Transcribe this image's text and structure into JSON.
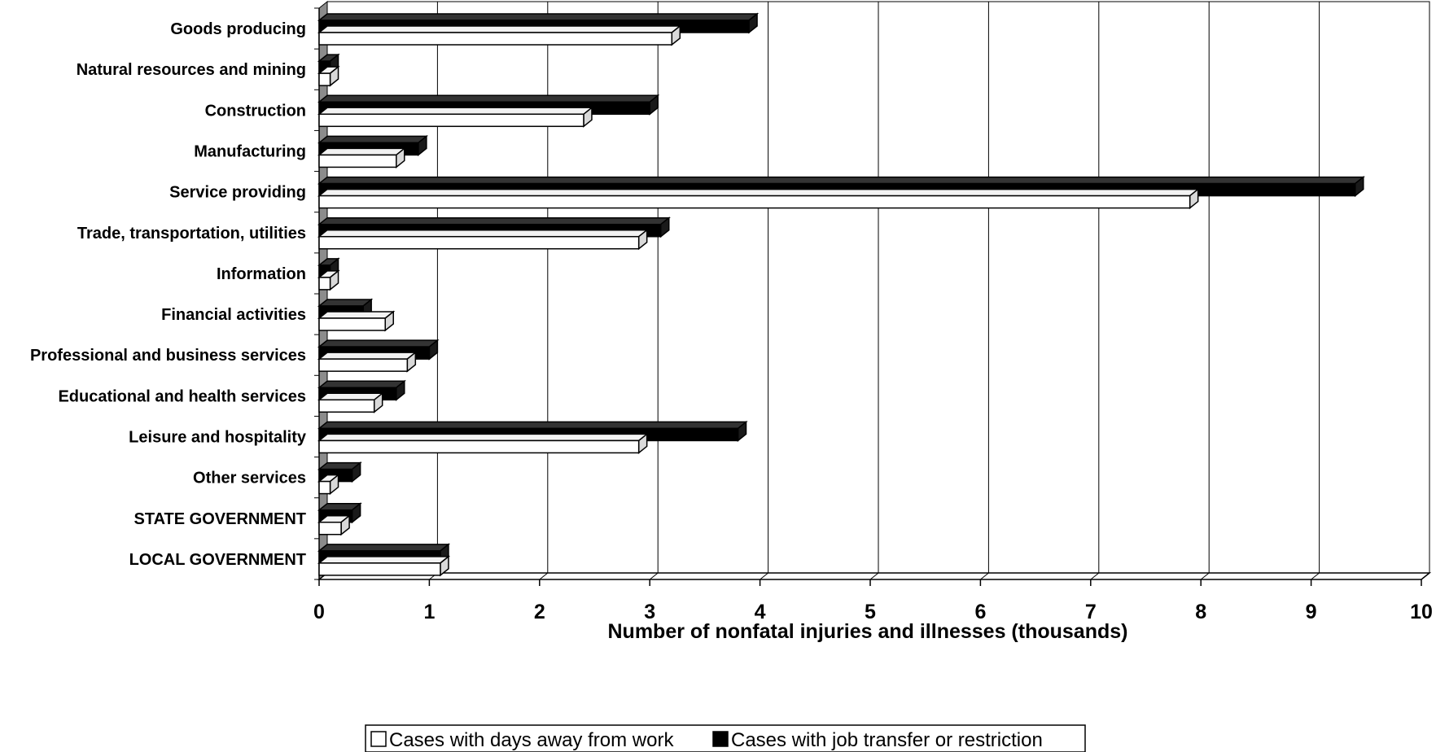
{
  "chart_data": {
    "type": "bar",
    "orientation": "horizontal",
    "style": "3d",
    "categories": [
      "Goods producing",
      "Natural resources and mining",
      "Construction",
      "Manufacturing",
      "Service providing",
      "Trade, transportation, utilities",
      "Information",
      "Financial activities",
      "Professional and business services",
      "Educational and health services",
      "Leisure and hospitality",
      "Other services",
      "STATE GOVERNMENT",
      "LOCAL GOVERNMENT"
    ],
    "series": [
      {
        "name": "Cases with days away from work",
        "color": "#ffffff",
        "values": [
          3.2,
          0.1,
          2.4,
          0.7,
          7.9,
          2.9,
          0.1,
          0.6,
          0.8,
          0.5,
          2.9,
          0.1,
          0.2,
          1.1
        ]
      },
      {
        "name": "Cases with job transfer or restriction",
        "color": "#000000",
        "values": [
          3.9,
          0.1,
          3.0,
          0.9,
          9.4,
          3.1,
          0.1,
          0.4,
          1.0,
          0.7,
          3.8,
          0.3,
          0.3,
          1.1
        ]
      }
    ],
    "xlabel": "Number of nonfatal injuries and illnesses (thousands)",
    "ylabel": "",
    "xlim": [
      0,
      10
    ],
    "xticks": [
      "0",
      "1",
      "2",
      "3",
      "4",
      "5",
      "6",
      "7",
      "8",
      "9",
      "10"
    ],
    "grid": "vertical",
    "legend_position": "bottom"
  }
}
